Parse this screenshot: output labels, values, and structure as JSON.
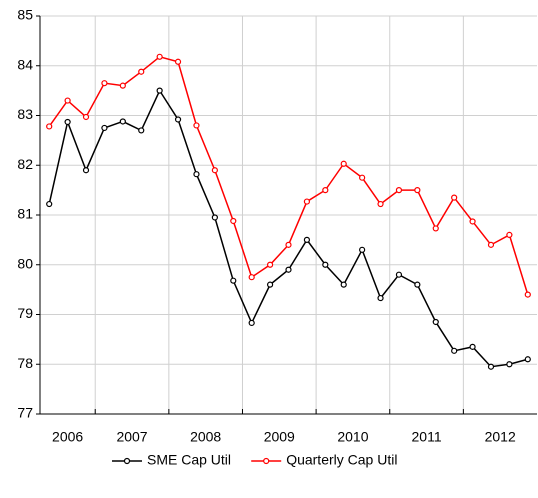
{
  "chart_data": {
    "type": "line",
    "categories": [
      "2006",
      null,
      null,
      "2007",
      null,
      null,
      null,
      "2008",
      null,
      null,
      null,
      "2009",
      null,
      null,
      null,
      "2010",
      null,
      null,
      null,
      "2011",
      null,
      null,
      null,
      "2012",
      null,
      null,
      null
    ],
    "series": [
      {
        "name": "SME Cap Util",
        "color": "#000000",
        "values": [
          81.22,
          82.87,
          81.9,
          82.75,
          82.88,
          82.7,
          83.5,
          82.92,
          81.82,
          80.95,
          79.68,
          78.83,
          79.6,
          79.9,
          80.5,
          80.0,
          79.6,
          80.3,
          79.33,
          79.8,
          79.6,
          78.85,
          78.27,
          78.35,
          77.95,
          78.0,
          78.1
        ]
      },
      {
        "name": "Quarterly Cap Util",
        "color": "#ff0000",
        "values": [
          82.78,
          83.3,
          82.97,
          83.65,
          83.6,
          83.88,
          84.18,
          84.08,
          82.8,
          81.9,
          80.88,
          79.75,
          80.0,
          80.4,
          81.27,
          81.5,
          82.03,
          81.75,
          81.22,
          81.5,
          81.5,
          80.73,
          81.35,
          80.87,
          80.4,
          80.6,
          79.4
        ]
      }
    ],
    "ylim": [
      77,
      85
    ],
    "yticks": [
      77,
      78,
      79,
      80,
      81,
      82,
      83,
      84,
      85
    ],
    "grid": true,
    "legend": "bottom"
  }
}
